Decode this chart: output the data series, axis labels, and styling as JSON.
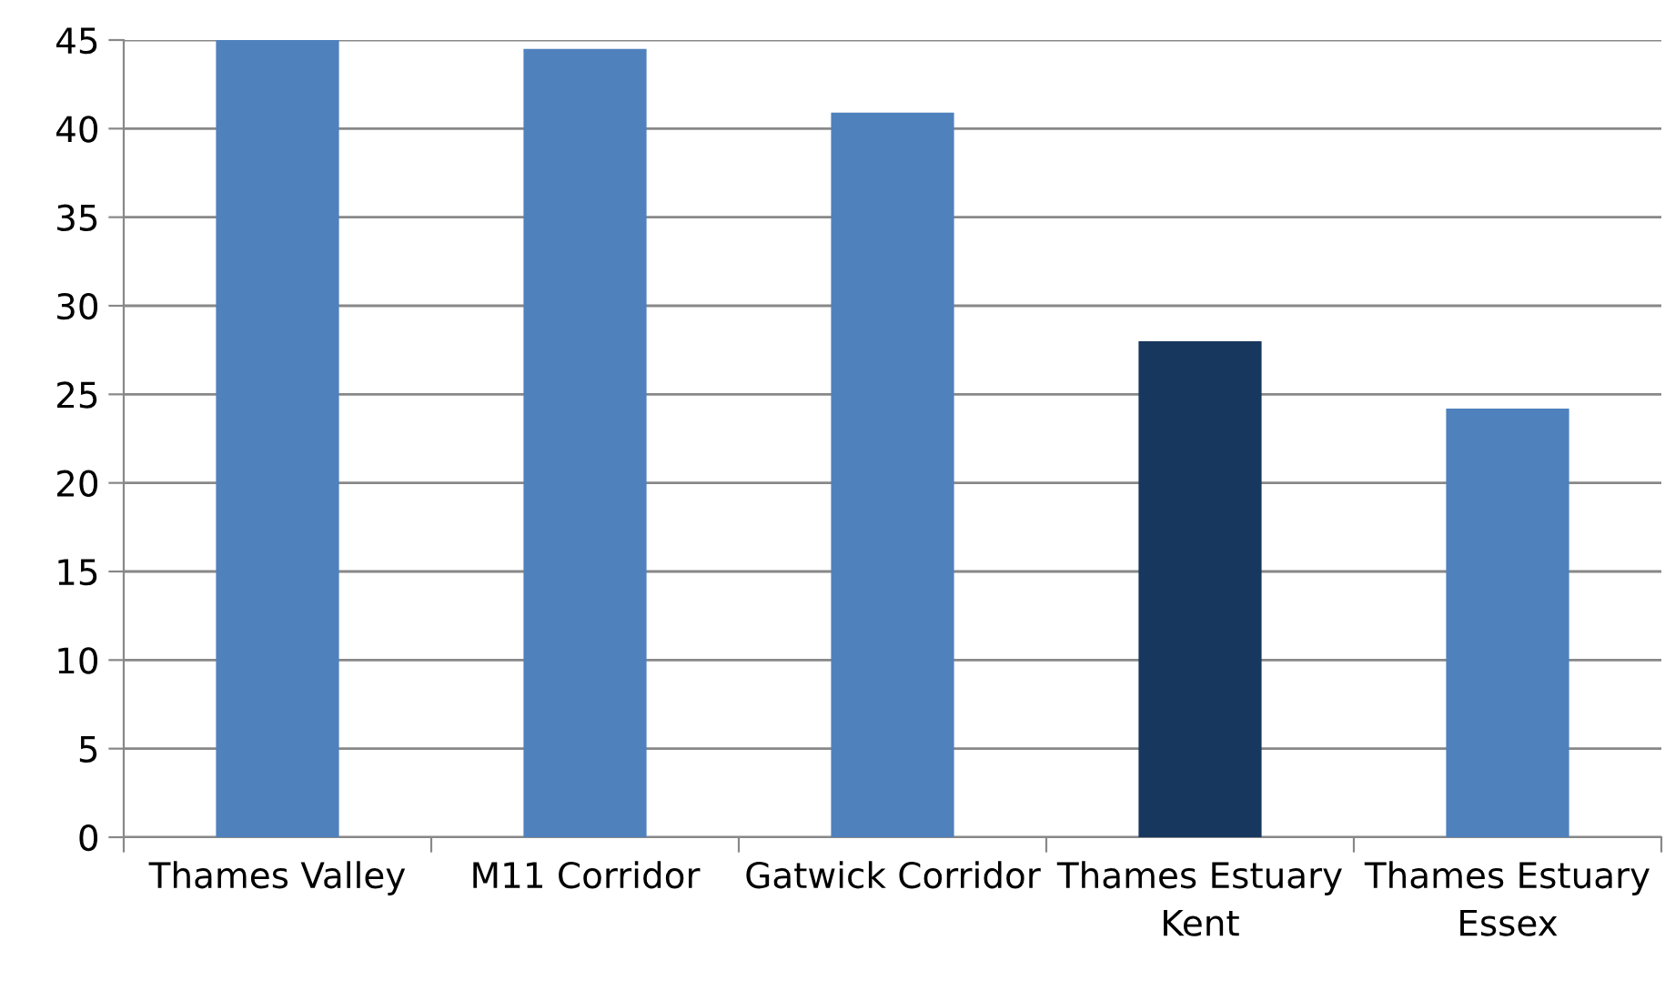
{
  "chart_data": {
    "type": "bar",
    "categories": [
      "Thames Valley",
      "M11 Corridor",
      "Gatwick Corridor",
      "Thames Estuary Kent",
      "Thames Estuary Essex"
    ],
    "values": [
      45,
      44.5,
      40.9,
      28,
      24.2
    ],
    "colors": [
      "#4f81bd",
      "#4f81bd",
      "#4f81bd",
      "#17375e",
      "#4f81bd"
    ],
    "ylim": [
      0,
      45
    ],
    "yticks": [
      0,
      5,
      10,
      15,
      20,
      25,
      30,
      35,
      40,
      45
    ],
    "grid": "y",
    "legend": false
  }
}
